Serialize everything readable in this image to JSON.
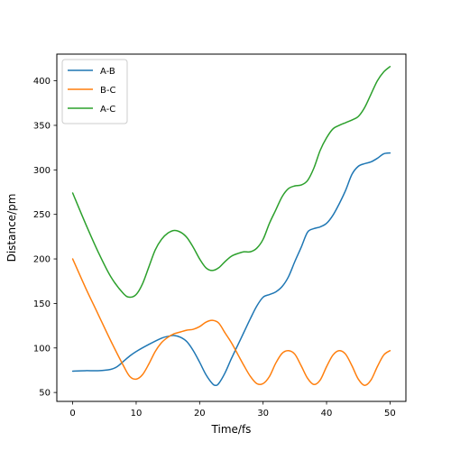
{
  "chart_data": {
    "type": "line",
    "xlabel": "Time/fs",
    "ylabel": "Distance/pm",
    "xlim": [
      -2.5,
      52.5
    ],
    "ylim": [
      40,
      430
    ],
    "xticks": [
      0,
      10,
      20,
      30,
      40,
      50
    ],
    "yticks": [
      50,
      100,
      150,
      200,
      250,
      300,
      350,
      400
    ],
    "legend_position": "top-left",
    "grid": false,
    "series": [
      {
        "name": "A-B",
        "color": "#1f77b4",
        "x": [
          0,
          2,
          4,
          6,
          7,
          8,
          9,
          10,
          12,
          14,
          15,
          16,
          17,
          18,
          19,
          20,
          21,
          22,
          22.5,
          23,
          24,
          25,
          26,
          27,
          28,
          29,
          30,
          31,
          32,
          33,
          34,
          35,
          36,
          37,
          38,
          39,
          40,
          41,
          42,
          43,
          44,
          45,
          46,
          47,
          48,
          49,
          50
        ],
        "y": [
          74,
          74.5,
          74.5,
          76,
          79,
          85,
          91,
          96,
          104,
          111,
          113,
          114,
          112,
          107,
          97,
          84,
          70,
          60,
          58,
          60,
          72,
          88,
          103,
          118,
          133,
          147,
          157,
          160,
          163,
          169,
          180,
          197,
          213,
          230,
          234,
          236,
          240,
          249,
          262,
          277,
          295,
          304,
          307,
          309,
          313,
          318,
          319
        ]
      },
      {
        "name": "B-C",
        "color": "#ff7f0e",
        "x": [
          0,
          2,
          4,
          6,
          8,
          9,
          10,
          11,
          12,
          13,
          14,
          15,
          16,
          17,
          18,
          19,
          20,
          21,
          22,
          23,
          24,
          25,
          26,
          27,
          28,
          29,
          30,
          31,
          32,
          33,
          34,
          35,
          36,
          37,
          38,
          39,
          40,
          41,
          42,
          43,
          44,
          45,
          46,
          47,
          48,
          49,
          50
        ],
        "y": [
          200,
          168,
          138,
          108,
          80,
          68,
          65,
          70,
          82,
          96,
          106,
          112,
          116,
          118,
          120,
          121,
          124,
          129,
          131,
          128,
          117,
          106,
          93,
          80,
          68,
          60,
          60,
          68,
          83,
          94,
          97,
          93,
          80,
          66,
          59,
          64,
          79,
          92,
          97,
          93,
          80,
          65,
          58,
          64,
          79,
          92,
          97
        ]
      },
      {
        "name": "A-C",
        "color": "#2ca02c",
        "x": [
          0,
          2,
          4,
          6,
          8,
          9,
          10,
          11,
          12,
          13,
          14,
          15,
          16,
          17,
          18,
          19,
          20,
          21,
          22,
          23,
          24,
          25,
          26,
          27,
          28,
          29,
          30,
          31,
          32,
          33,
          34,
          35,
          36,
          37,
          38,
          39,
          40,
          41,
          42,
          43,
          44,
          45,
          46,
          47,
          48,
          49,
          50
        ],
        "y": [
          274,
          240,
          208,
          180,
          161,
          157,
          160,
          172,
          191,
          210,
          222,
          229,
          232,
          230,
          224,
          213,
          200,
          190,
          187,
          190,
          197,
          203,
          206,
          208,
          208,
          212,
          222,
          240,
          255,
          270,
          279,
          282,
          283,
          288,
          302,
          322,
          336,
          346,
          350,
          353,
          356,
          360,
          370,
          385,
          400,
          410,
          416
        ]
      }
    ]
  }
}
